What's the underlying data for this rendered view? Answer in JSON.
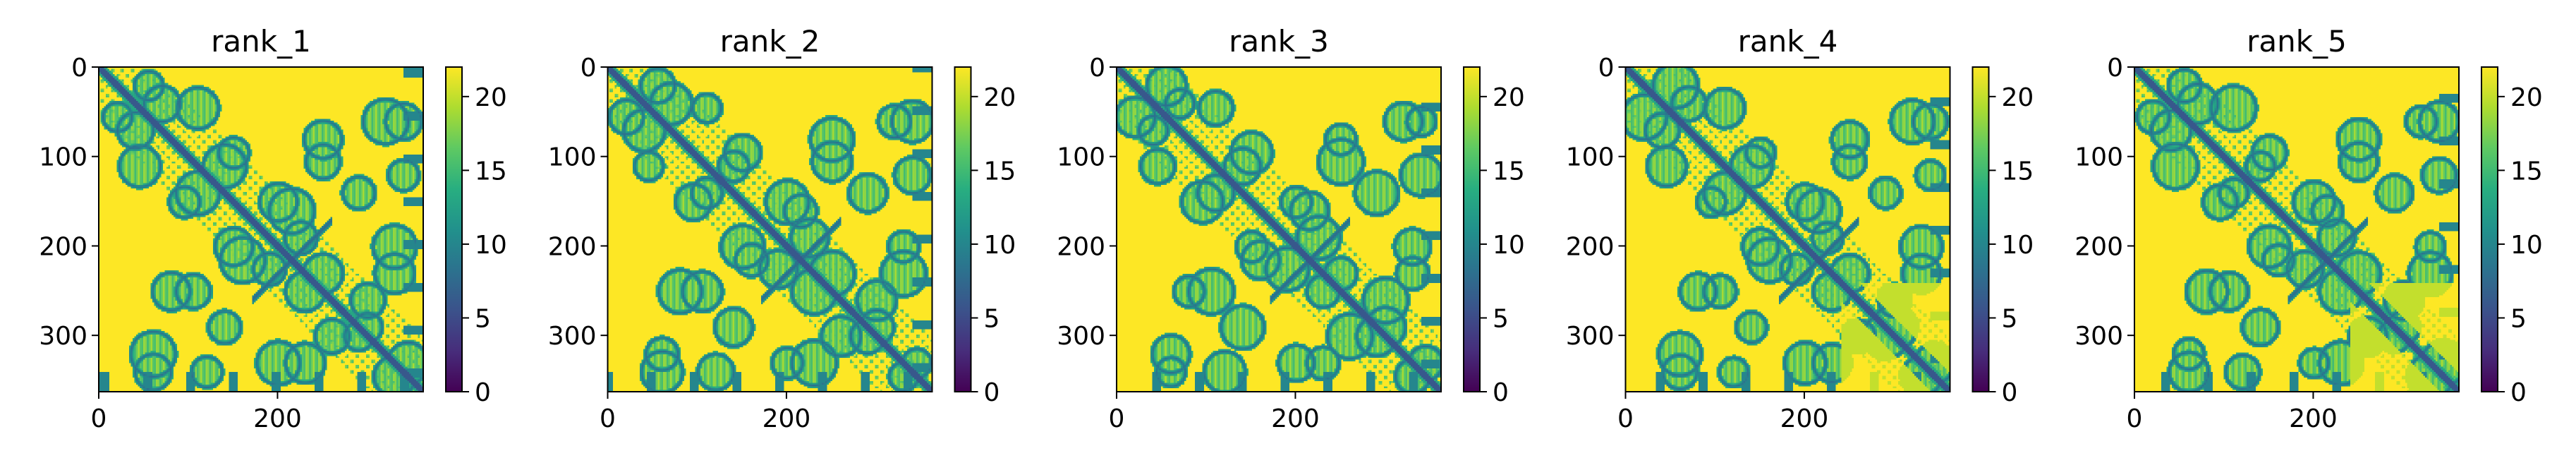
{
  "chart_data": [
    {
      "type": "heatmap",
      "title": "rank_1",
      "n": 363,
      "xticks": [
        0,
        200
      ],
      "yticks": [
        0,
        100,
        200,
        300
      ],
      "zlim": [
        0,
        22
      ],
      "colorbar_ticks": [
        0,
        5,
        10,
        15,
        20
      ],
      "colormap": "viridis",
      "variant": 0
    },
    {
      "type": "heatmap",
      "title": "rank_2",
      "n": 363,
      "xticks": [
        0,
        200
      ],
      "yticks": [
        0,
        100,
        200,
        300
      ],
      "zlim": [
        0,
        22
      ],
      "colorbar_ticks": [
        0,
        5,
        10,
        15,
        20
      ],
      "colormap": "viridis",
      "variant": 1
    },
    {
      "type": "heatmap",
      "title": "rank_3",
      "n": 363,
      "xticks": [
        0,
        200
      ],
      "yticks": [
        0,
        100,
        200,
        300
      ],
      "zlim": [
        0,
        22
      ],
      "colorbar_ticks": [
        0,
        5,
        10,
        15,
        20
      ],
      "colormap": "viridis",
      "variant": 2
    },
    {
      "type": "heatmap",
      "title": "rank_4",
      "n": 363,
      "xticks": [
        0,
        200
      ],
      "yticks": [
        0,
        100,
        200,
        300
      ],
      "zlim": [
        0,
        22
      ],
      "colorbar_ticks": [
        0,
        5,
        10,
        15,
        20
      ],
      "colormap": "viridis",
      "variant": 3
    },
    {
      "type": "heatmap",
      "title": "rank_5",
      "n": 363,
      "xticks": [
        0,
        200
      ],
      "yticks": [
        0,
        100,
        200,
        300
      ],
      "zlim": [
        0,
        22
      ],
      "colorbar_ticks": [
        0,
        5,
        10,
        15,
        20
      ],
      "colormap": "viridis",
      "variant": 4
    }
  ]
}
